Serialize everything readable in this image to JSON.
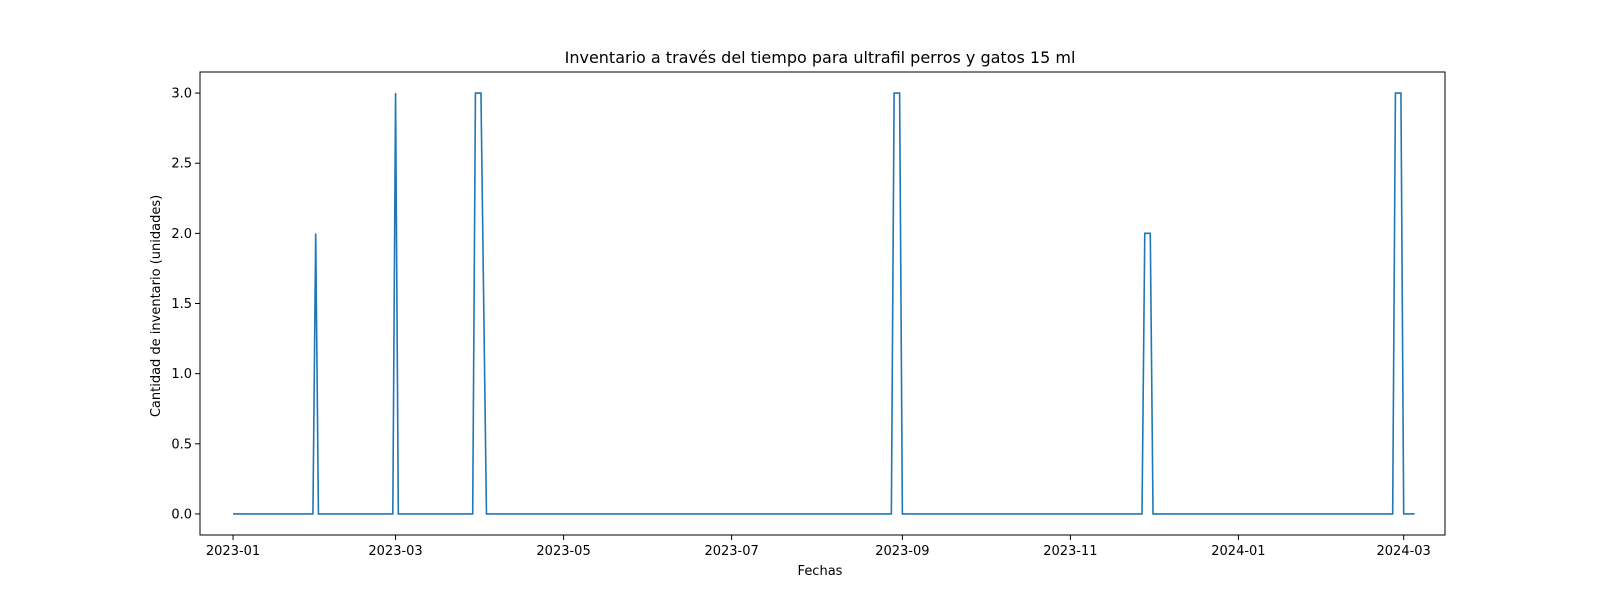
{
  "chart_data": {
    "type": "line",
    "title": "Inventario a través del tiempo para ultrafil perros y gatos 15 ml",
    "xlabel": "Fechas",
    "ylabel": "Cantidad de inventario (unidades)",
    "xlim": [
      "2022-12-20",
      "2024-03-16"
    ],
    "ylim": [
      -0.15,
      3.15
    ],
    "grid": false,
    "line_color": "#1f77b4",
    "x_ticks": [
      {
        "date": "2023-01-01",
        "label": "2023-01"
      },
      {
        "date": "2023-03-01",
        "label": "2023-03"
      },
      {
        "date": "2023-05-01",
        "label": "2023-05"
      },
      {
        "date": "2023-07-01",
        "label": "2023-07"
      },
      {
        "date": "2023-09-01",
        "label": "2023-09"
      },
      {
        "date": "2023-11-01",
        "label": "2023-11"
      },
      {
        "date": "2024-01-01",
        "label": "2024-01"
      },
      {
        "date": "2024-03-01",
        "label": "2024-03"
      }
    ],
    "y_ticks": [
      {
        "value": 0.0,
        "label": "0.0"
      },
      {
        "value": 0.5,
        "label": "0.5"
      },
      {
        "value": 1.0,
        "label": "1.0"
      },
      {
        "value": 1.5,
        "label": "1.5"
      },
      {
        "value": 2.0,
        "label": "2.0"
      },
      {
        "value": 2.5,
        "label": "2.5"
      },
      {
        "value": 3.0,
        "label": "3.0"
      }
    ],
    "series": [
      {
        "x": [
          "2023-01-01",
          "2023-01-30",
          "2023-01-31",
          "2023-02-01",
          "2023-02-28",
          "2023-03-01",
          "2023-03-02",
          "2023-03-29",
          "2023-03-30",
          "2023-04-01",
          "2023-04-03",
          "2023-08-28",
          "2023-08-29",
          "2023-08-31",
          "2023-09-01",
          "2023-11-27",
          "2023-11-28",
          "2023-11-30",
          "2023-12-01",
          "2024-02-26",
          "2024-02-27",
          "2024-02-29",
          "2024-03-01",
          "2024-03-05"
        ],
        "y": [
          0,
          0,
          2,
          0,
          0,
          3,
          0,
          0,
          3,
          3,
          0,
          0,
          3,
          3,
          0,
          0,
          2,
          2,
          0,
          0,
          3,
          3,
          0,
          0
        ]
      }
    ]
  }
}
